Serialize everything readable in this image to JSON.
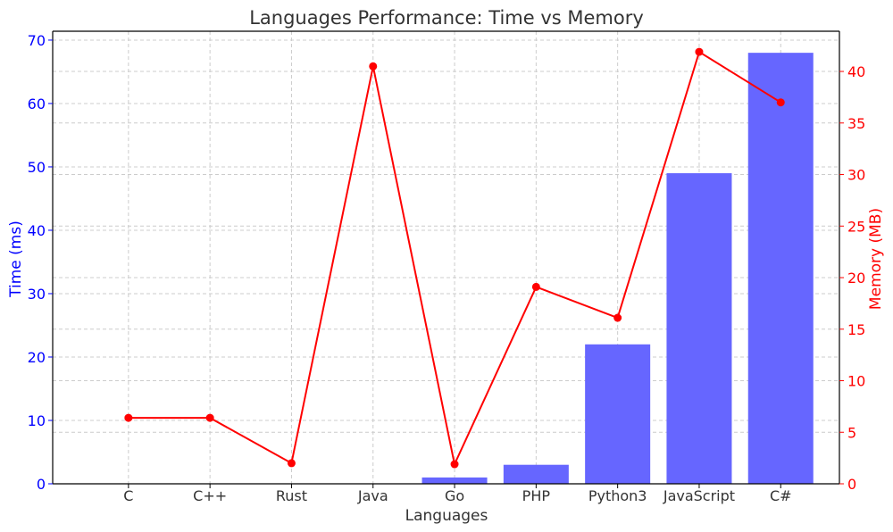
{
  "chart_data": {
    "type": "bar",
    "title": "Languages Performance: Time vs Memory",
    "xlabel": "Languages",
    "categories": [
      "C",
      "C++",
      "Rust",
      "Java",
      "Go",
      "PHP",
      "Python3",
      "JavaScript",
      "C#"
    ],
    "y_left": {
      "label": "Time (ms)",
      "color": "#0000ff",
      "ylim": [
        0,
        71.4
      ],
      "ticks": [
        0,
        10,
        20,
        30,
        40,
        50,
        60,
        70
      ]
    },
    "y_right": {
      "label": "Memory (MB)",
      "color": "#ff0000",
      "ylim": [
        0,
        43.9
      ],
      "ticks": [
        0,
        5,
        10,
        15,
        20,
        25,
        30,
        35,
        40
      ]
    },
    "series": [
      {
        "type": "bar",
        "axis": "left",
        "color": "#6666ff",
        "values": [
          0,
          0,
          0,
          0,
          1,
          3,
          22,
          49,
          68
        ]
      },
      {
        "type": "line",
        "axis": "right",
        "color": "#ff0000",
        "values": [
          6.4,
          6.4,
          2.0,
          40.5,
          1.9,
          19.1,
          16.1,
          41.9,
          37.0
        ]
      }
    ],
    "grid": true
  }
}
